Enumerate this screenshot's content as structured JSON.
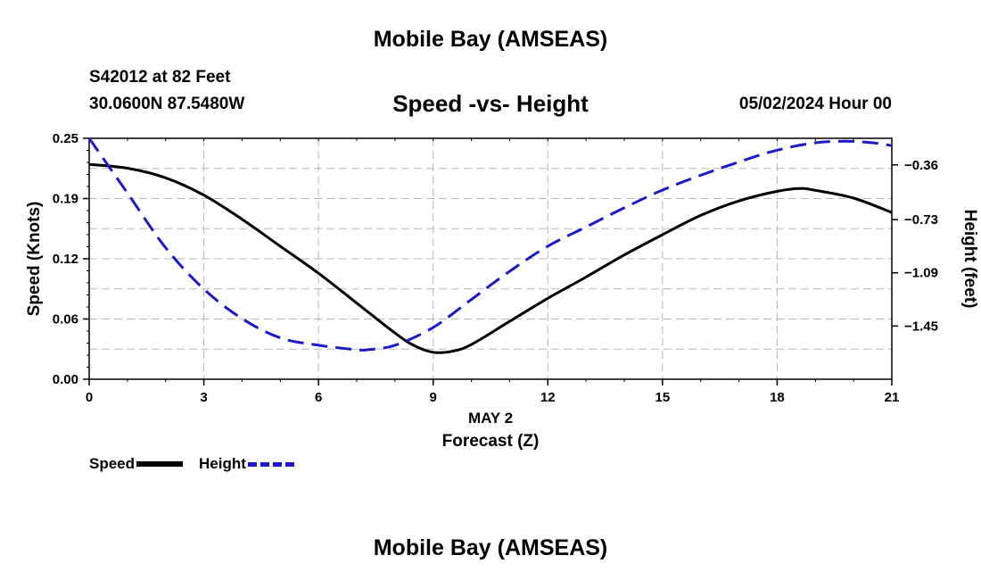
{
  "header": {
    "top_title": "Mobile Bay (AMSEAS)",
    "station": "S42012 at 82 Feet",
    "coords": "30.0600N  87.5480W",
    "date": "05/02/2024 Hour 00",
    "bottom_title": "Mobile Bay (AMSEAS)"
  },
  "chart_data": {
    "type": "line",
    "title": "Speed -vs- Height",
    "xlabel": "Forecast (Z)",
    "xsublabel": "MAY 2",
    "ylabel_left": "Speed (Knots)",
    "ylabel_right": "Height (feet)",
    "xlim": [
      0,
      21
    ],
    "xticks": [
      0,
      3,
      6,
      9,
      12,
      15,
      18,
      21
    ],
    "xtick_labels": [
      "0",
      "3",
      "6",
      "9",
      "12",
      "15",
      "18",
      "21"
    ],
    "ylim_left": [
      0,
      0.25
    ],
    "yticks_left": [
      0.0,
      0.06,
      0.12,
      0.19,
      0.25
    ],
    "ytick_labels_left": [
      "0.00",
      "0.06",
      "0.12",
      "0.19",
      "0.25"
    ],
    "ylim_right": [
      -1.81,
      -0.18
    ],
    "yticks_right": [
      -1.45,
      -1.09,
      -0.73,
      -0.36
    ],
    "ytick_labels_right": [
      "−1.45",
      "−1.09",
      "−0.73",
      "−0.36"
    ],
    "series": [
      {
        "name": "Speed",
        "axis": "left",
        "color": "#000000",
        "dash": false,
        "x": [
          0,
          1,
          2,
          3,
          4,
          5,
          6,
          7,
          8,
          8.5,
          9,
          9.5,
          10,
          11,
          12,
          13,
          14,
          15,
          16,
          17,
          18,
          18.6,
          19,
          20,
          21
        ],
        "y": [
          0.223,
          0.219,
          0.209,
          0.191,
          0.166,
          0.138,
          0.11,
          0.079,
          0.048,
          0.035,
          0.028,
          0.029,
          0.036,
          0.06,
          0.084,
          0.106,
          0.129,
          0.15,
          0.17,
          0.185,
          0.195,
          0.198,
          0.196,
          0.188,
          0.173
        ]
      },
      {
        "name": "Height",
        "axis": "right",
        "color": "#1a1acc",
        "dash": true,
        "x": [
          0,
          1,
          2,
          3,
          4,
          5,
          6,
          7,
          7.3,
          8,
          9,
          10,
          11,
          12,
          13,
          14,
          15,
          16,
          17,
          18,
          19,
          19.8,
          20.5,
          21
        ],
        "y": [
          -0.18,
          -0.55,
          -0.92,
          -1.2,
          -1.4,
          -1.53,
          -1.58,
          -1.61,
          -1.61,
          -1.58,
          -1.46,
          -1.27,
          -1.08,
          -0.91,
          -0.78,
          -0.65,
          -0.53,
          -0.43,
          -0.34,
          -0.26,
          -0.21,
          -0.2,
          -0.21,
          -0.23
        ]
      }
    ],
    "legend": [
      {
        "name": "Speed",
        "style": "solid",
        "color": "#000000"
      },
      {
        "name": "Height",
        "style": "dashed",
        "color": "#1a1acc"
      }
    ]
  }
}
